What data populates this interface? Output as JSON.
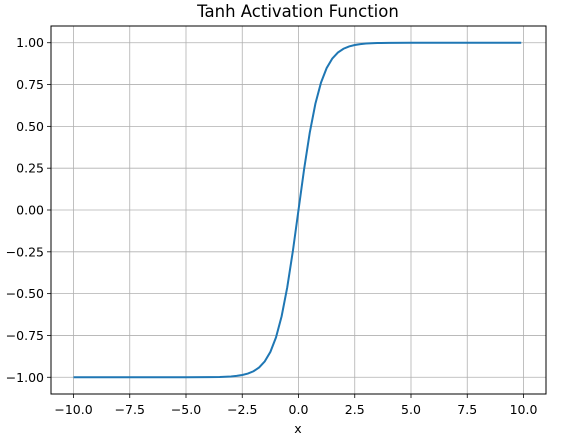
{
  "chart_data": {
    "type": "line",
    "title": "Tanh Activation Function",
    "xlabel": "x",
    "ylabel": "",
    "xlim": [
      -11.0,
      11.0
    ],
    "ylim": [
      -1.1,
      1.1
    ],
    "xticks": [
      -10,
      -7.5,
      -5,
      -2.5,
      0,
      2.5,
      5,
      7.5,
      10
    ],
    "xtick_labels": [
      "−10.0",
      "−7.5",
      "−5.0",
      "−2.5",
      "0.0",
      "2.5",
      "5.0",
      "7.5",
      "10.0"
    ],
    "yticks": [
      -1,
      -0.75,
      -0.5,
      -0.25,
      0,
      0.25,
      0.5,
      0.75,
      1
    ],
    "ytick_labels": [
      "−1.00",
      "−0.75",
      "−0.50",
      "−0.25",
      "0.00",
      "0.25",
      "0.50",
      "0.75",
      "1.00"
    ],
    "grid": true,
    "series": [
      {
        "color": "#1f77b4",
        "x": [
          -10,
          -8,
          -6,
          -5,
          -4,
          -3.5,
          -3,
          -2.75,
          -2.5,
          -2.25,
          -2,
          -1.75,
          -1.5,
          -1.25,
          -1,
          -0.75,
          -0.5,
          -0.25,
          0,
          0.25,
          0.5,
          0.75,
          1,
          1.25,
          1.5,
          1.75,
          2,
          2.25,
          2.5,
          2.75,
          3,
          3.5,
          4,
          5,
          6,
          8,
          9.9
        ],
        "y": [
          -1.0,
          -1.0,
          -1.0,
          -0.9999,
          -0.9993,
          -0.9982,
          -0.9951,
          -0.9918,
          -0.9866,
          -0.978,
          -0.964,
          -0.9414,
          -0.9051,
          -0.8483,
          -0.7616,
          -0.6351,
          -0.4621,
          -0.2449,
          0.0,
          0.2449,
          0.4621,
          0.6351,
          0.7616,
          0.8483,
          0.9051,
          0.9414,
          0.964,
          0.978,
          0.9866,
          0.9918,
          0.9951,
          0.9982,
          0.9993,
          0.9999,
          1.0,
          1.0,
          1.0
        ]
      }
    ]
  }
}
